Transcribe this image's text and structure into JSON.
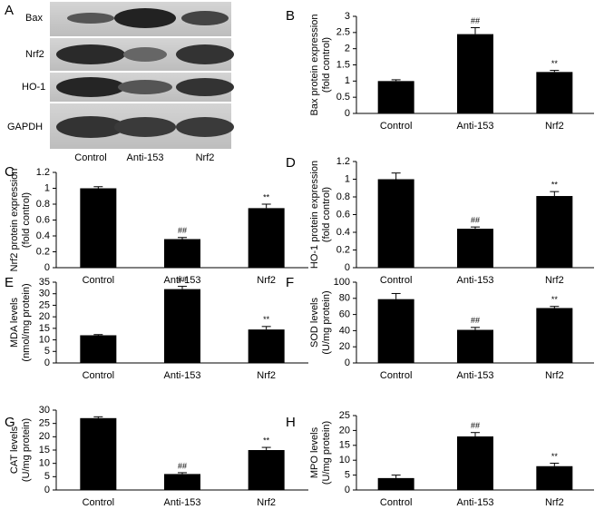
{
  "panel_a": {
    "panel": "A",
    "rows": [
      "Bax",
      "Nrf2",
      "HO-1",
      "GAPDH"
    ],
    "lanes": [
      "Control",
      "Anti-153",
      "Nrf2"
    ]
  },
  "chart_data": [
    {
      "type": "bar",
      "panel": "B",
      "ylabel": [
        "Bax protein expression",
        "(fold control)"
      ],
      "categories": [
        "Control",
        "Anti-153",
        "Nrf2"
      ],
      "values": [
        1.0,
        2.45,
        1.28
      ],
      "errors": [
        0.04,
        0.2,
        0.05
      ],
      "annotations": [
        null,
        "##",
        "**"
      ],
      "color": "#000000",
      "ylim": [
        0,
        3
      ],
      "yticks": [
        0,
        0.5,
        1,
        1.5,
        2,
        2.5,
        3
      ]
    },
    {
      "type": "bar",
      "panel": "C",
      "ylabel": [
        "Nrf2 protein expression",
        "(fold control)"
      ],
      "categories": [
        "Control",
        "Anti-153",
        "Nrf2"
      ],
      "values": [
        1.0,
        0.36,
        0.75
      ],
      "errors": [
        0.02,
        0.02,
        0.05
      ],
      "annotations": [
        null,
        "##",
        "**"
      ],
      "color": "#000000",
      "ylim": [
        0,
        1.2
      ],
      "yticks": [
        0,
        0.2,
        0.4,
        0.6,
        0.8,
        1,
        1.2
      ]
    },
    {
      "type": "bar",
      "panel": "D",
      "ylabel": [
        "HO-1 protein expression",
        "(fold control)"
      ],
      "categories": [
        "Control",
        "Anti-153",
        "Nrf2"
      ],
      "values": [
        1.0,
        0.44,
        0.81
      ],
      "errors": [
        0.07,
        0.02,
        0.05
      ],
      "annotations": [
        null,
        "##",
        "**"
      ],
      "color": "#000000",
      "ylim": [
        0,
        1.2
      ],
      "yticks": [
        0,
        0.2,
        0.4,
        0.6,
        0.8,
        1,
        1.2
      ]
    },
    {
      "type": "bar",
      "panel": "E",
      "ylabel": [
        "MDA levels",
        "(nmol/mg protein)"
      ],
      "categories": [
        "Control",
        "Anti-153",
        "Nrf2"
      ],
      "values": [
        12,
        32,
        14.5
      ],
      "errors": [
        0.3,
        1.2,
        1.3
      ],
      "annotations": [
        null,
        "##",
        "**"
      ],
      "color": "#000000",
      "ylim": [
        0,
        35
      ],
      "yticks": [
        0,
        5,
        10,
        15,
        20,
        25,
        30,
        35
      ]
    },
    {
      "type": "bar",
      "panel": "F",
      "ylabel": [
        "SOD levels",
        "(U/mg protein)"
      ],
      "categories": [
        "Control",
        "Anti-153",
        "Nrf2"
      ],
      "values": [
        79,
        41,
        68
      ],
      "errors": [
        7,
        3,
        2
      ],
      "annotations": [
        null,
        "##",
        "**"
      ],
      "color": "#000000",
      "ylim": [
        0,
        100
      ],
      "yticks": [
        0,
        20,
        40,
        60,
        80,
        100
      ]
    },
    {
      "type": "bar",
      "panel": "G",
      "ylabel": [
        "CAT levels",
        "(U/mg protein)"
      ],
      "categories": [
        "Control",
        "Anti-153",
        "Nrf2"
      ],
      "values": [
        27,
        6,
        15
      ],
      "errors": [
        0.5,
        0.5,
        1
      ],
      "annotations": [
        null,
        "##",
        "**"
      ],
      "color": "#000000",
      "ylim": [
        0,
        30
      ],
      "yticks": [
        0,
        5,
        10,
        15,
        20,
        25,
        30
      ]
    },
    {
      "type": "bar",
      "panel": "H",
      "ylabel": [
        "MPO levels",
        "(U/mg protein)"
      ],
      "categories": [
        "Control",
        "Anti-153",
        "Nrf2"
      ],
      "values": [
        4,
        18,
        8
      ],
      "errors": [
        1,
        1.3,
        1
      ],
      "annotations": [
        null,
        "##",
        "**"
      ],
      "color": "#000000",
      "ylim": [
        0,
        25
      ],
      "yticks": [
        0,
        5,
        10,
        15,
        20,
        25
      ]
    }
  ]
}
